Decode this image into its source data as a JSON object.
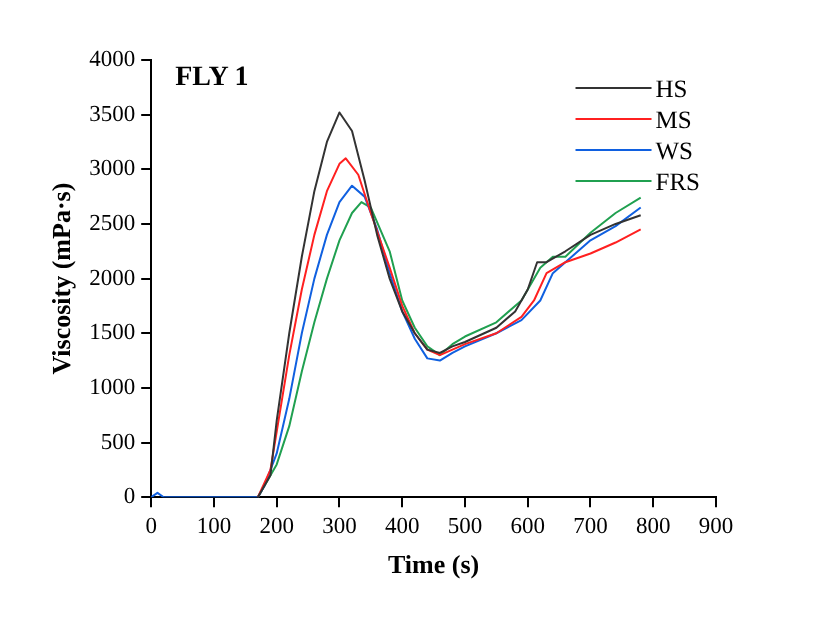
{
  "chart_data": {
    "type": "line",
    "title": "FLY 1",
    "xlabel": "Time (s)",
    "ylabel": "Viscosity (mPa·s)",
    "xlim": [
      0,
      900
    ],
    "xticks": [
      0,
      100,
      200,
      300,
      400,
      500,
      600,
      700,
      800,
      900
    ],
    "ylim": [
      0,
      4000
    ],
    "yticks": [
      0,
      500,
      1000,
      1500,
      2000,
      2500,
      3000,
      3500,
      4000
    ],
    "grid": false,
    "legend": "top right",
    "marker": "none",
    "line_style": "solid",
    "series": [
      {
        "name": "HS",
        "color": "#333333",
        "x": [
          170,
          190,
          200,
          220,
          240,
          260,
          280,
          300,
          320,
          340,
          360,
          380,
          400,
          420,
          440,
          460,
          480,
          500,
          550,
          580,
          600,
          615,
          630,
          660,
          700,
          740,
          780
        ],
        "values": [
          0,
          200,
          700,
          1500,
          2200,
          2800,
          3250,
          3520,
          3350,
          2900,
          2400,
          2000,
          1700,
          1500,
          1350,
          1320,
          1380,
          1420,
          1550,
          1700,
          1900,
          2150,
          2150,
          2250,
          2400,
          2500,
          2580
        ]
      },
      {
        "name": "MS",
        "color": "#ff2020",
        "x": [
          170,
          190,
          200,
          220,
          240,
          260,
          280,
          300,
          310,
          330,
          350,
          380,
          400,
          420,
          440,
          460,
          480,
          500,
          550,
          590,
          610,
          630,
          660,
          700,
          740,
          780
        ],
        "values": [
          0,
          250,
          600,
          1300,
          1900,
          2400,
          2800,
          3050,
          3100,
          2950,
          2600,
          2100,
          1750,
          1500,
          1350,
          1300,
          1350,
          1400,
          1500,
          1650,
          1800,
          2050,
          2150,
          2230,
          2330,
          2450
        ]
      },
      {
        "name": "WS",
        "color": "#1060e0",
        "x": [
          0,
          10,
          20,
          170,
          180,
          200,
          220,
          240,
          260,
          280,
          300,
          320,
          340,
          360,
          380,
          400,
          420,
          440,
          460,
          480,
          500,
          550,
          590,
          620,
          640,
          660,
          700,
          740,
          780
        ],
        "values": [
          0,
          40,
          0,
          0,
          100,
          400,
          900,
          1500,
          2000,
          2400,
          2700,
          2850,
          2750,
          2450,
          2050,
          1700,
          1450,
          1270,
          1250,
          1320,
          1380,
          1500,
          1620,
          1800,
          2050,
          2150,
          2350,
          2480,
          2650
        ]
      },
      {
        "name": "FRS",
        "color": "#20a050",
        "x": [
          170,
          200,
          220,
          240,
          260,
          280,
          300,
          320,
          335,
          350,
          380,
          400,
          420,
          440,
          460,
          480,
          500,
          550,
          590,
          620,
          640,
          660,
          700,
          740,
          780
        ],
        "values": [
          0,
          300,
          650,
          1150,
          1600,
          2000,
          2350,
          2600,
          2700,
          2650,
          2250,
          1800,
          1550,
          1380,
          1300,
          1400,
          1470,
          1600,
          1800,
          2100,
          2200,
          2200,
          2420,
          2600,
          2740
        ]
      }
    ]
  }
}
